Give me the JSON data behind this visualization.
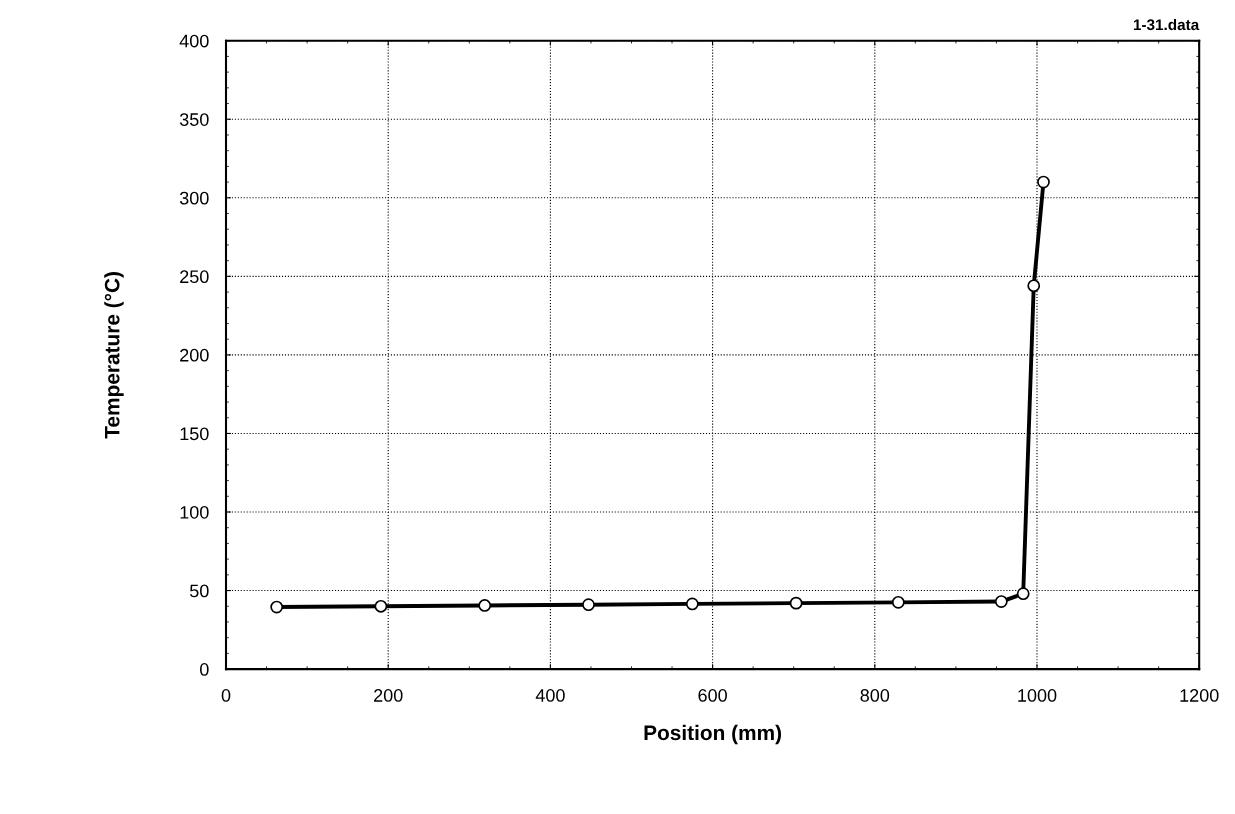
{
  "chart_data": {
    "type": "line",
    "xlabel": "Position (mm)",
    "ylabel": "Temperature (°C)",
    "annotations": [
      "1-31.data"
    ],
    "series": [
      {
        "color": "#000000",
        "x": [
          62.5,
          191,
          319,
          447,
          575,
          703,
          829,
          956,
          983,
          996,
          1008
        ],
        "values": [
          39.5,
          40,
          40.5,
          41,
          41.5,
          42,
          42.5,
          43,
          48,
          244,
          310
        ]
      }
    ],
    "xlim": [
      0,
      1200
    ],
    "xticks": [
      0,
      200,
      400,
      600,
      800,
      1000,
      1200
    ],
    "ylim": [
      0,
      400
    ],
    "yticks": [
      0,
      50,
      100,
      150,
      200,
      250,
      300,
      350,
      400
    ],
    "grid": true,
    "marker": "circle",
    "line_style": "solid"
  }
}
